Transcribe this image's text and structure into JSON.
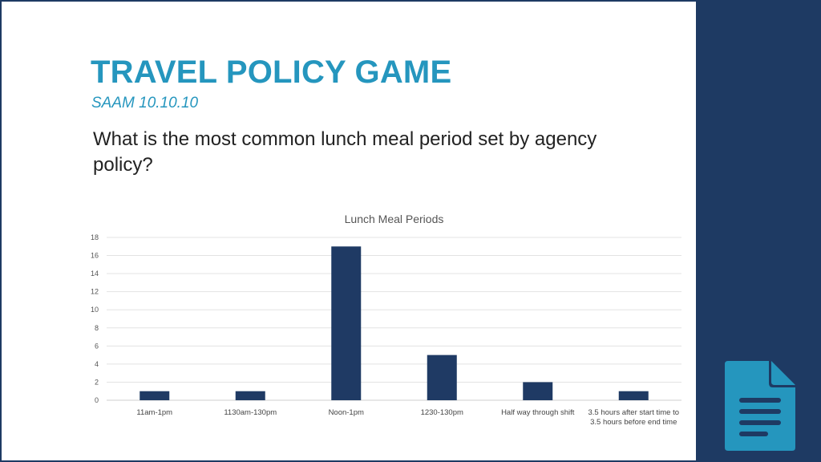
{
  "slide": {
    "title": "TRAVEL POLICY GAME",
    "subtitle": "SAAM 10.10.10",
    "question": "What is the most common lunch meal period set by agency policy?"
  },
  "colors": {
    "background": "#1e3a63",
    "title": "#2596be",
    "bar": "#1f3a64",
    "icon": "#2596be"
  },
  "icons": {
    "document": "document-icon"
  },
  "chart_data": {
    "type": "bar",
    "title": "Lunch Meal Periods",
    "categories": [
      [
        "11am-1pm"
      ],
      [
        "1130am-130pm"
      ],
      [
        "Noon-1pm"
      ],
      [
        "1230-130pm"
      ],
      [
        "Half way through shift"
      ],
      [
        "3.5 hours after start time to",
        "3.5 hours before end time"
      ]
    ],
    "values": [
      1,
      1,
      17,
      5,
      2,
      1
    ],
    "ylim": [
      0,
      18
    ],
    "yticks": [
      0,
      2,
      4,
      6,
      8,
      10,
      12,
      14,
      16,
      18
    ],
    "grid": true,
    "xlabel": "",
    "ylabel": ""
  }
}
